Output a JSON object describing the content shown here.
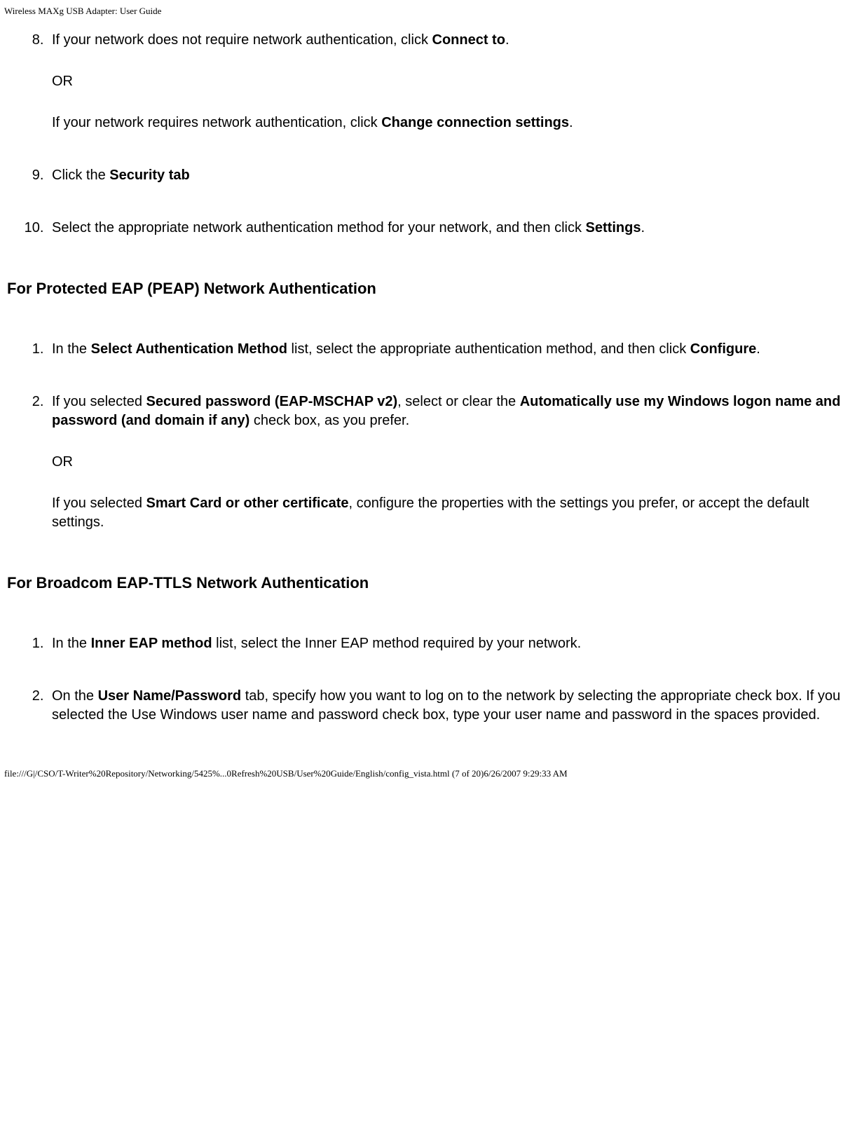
{
  "header": {
    "title": "Wireless MAXg USB Adapter: User Guide"
  },
  "list1": {
    "start": 8,
    "items": [
      {
        "p1a": "If your network does not require network authentication, click ",
        "p1b": "Connect to",
        "p1c": ".",
        "p2": "OR",
        "p3a": "If your network requires network authentication, click ",
        "p3b": "Change connection settings",
        "p3c": "."
      },
      {
        "p1a": "Click the ",
        "p1b": "Security tab"
      },
      {
        "p1a": "Select the appropriate network authentication method for your network, and then click ",
        "p1b": "Settings",
        "p1c": "."
      }
    ]
  },
  "heading1": "For Protected EAP (PEAP) Network Authentication",
  "list2": {
    "items": [
      {
        "p1a": "In the ",
        "p1b": "Select Authentication Method",
        "p1c": " list, select the appropriate authentication method, and then click ",
        "p1d": "Configure",
        "p1e": "."
      },
      {
        "p1a": "If you selected ",
        "p1b": "Secured password (EAP-MSCHAP v2)",
        "p1c": ", select or clear the ",
        "p1d": "Automatically use my Windows logon name and password (and domain if any)",
        "p1e": " check box, as you prefer.",
        "p2": "OR",
        "p3a": "If you selected ",
        "p3b": "Smart Card or other certificate",
        "p3c": ", configure the properties with the settings you prefer, or accept the default settings."
      }
    ]
  },
  "heading2": "For Broadcom EAP-TTLS Network Authentication",
  "list3": {
    "items": [
      {
        "p1a": "In the ",
        "p1b": "Inner EAP method",
        "p1c": " list, select the Inner EAP method required by your network."
      },
      {
        "p1a": "On the ",
        "p1b": "User Name/Password",
        "p1c": " tab, specify how you want to log on to the network by selecting the appropriate check box. If you selected the Use Windows user name and password check box, type your user name and password in the spaces provided."
      }
    ]
  },
  "footer": {
    "text": "file:///G|/CSO/T-Writer%20Repository/Networking/5425%...0Refresh%20USB/User%20Guide/English/config_vista.html (7 of 20)6/26/2007 9:29:33 AM"
  }
}
